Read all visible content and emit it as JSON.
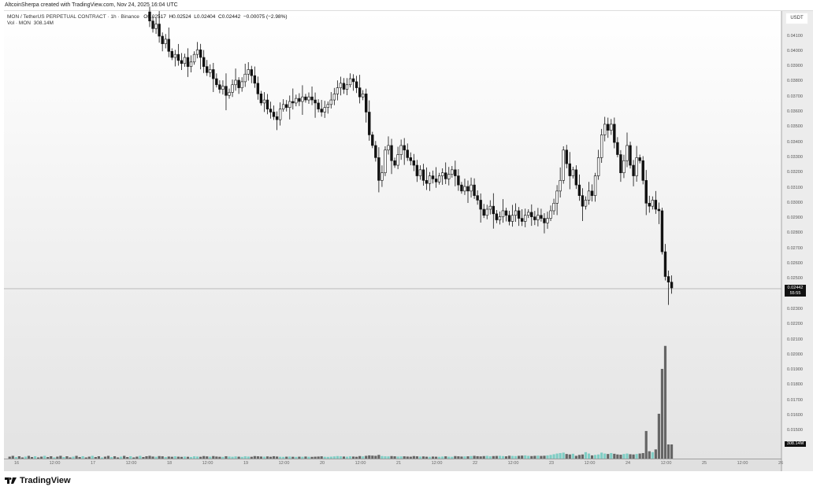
{
  "credit": "AltcoinSherpa created with TradingView.com, Nov 24, 2025 16:04 UTC",
  "legend": {
    "symbol": "MON / TetherUS PERPETUAL CONTRACT · 1h · Binance",
    "open": "O0.02517",
    "high": "H0.02524",
    "low": "L0.02404",
    "close": "C0.02442",
    "change": "−0.00075 (−2.98%)",
    "vol_label": "Vol · MON",
    "vol_value": "308.14M"
  },
  "axis": {
    "currency": "USDT",
    "last_price": "0.02442",
    "countdown": "55:55",
    "last_volume": "308.14M"
  },
  "brand": "TradingView",
  "colors": {
    "up_volume": "#7fcdc4",
    "down_volume": "#666666",
    "candle_down": "#111111",
    "candle_up": "#ffffff"
  },
  "chart_data": {
    "type": "candlestick",
    "interval": "1h",
    "start": "Nov 17 18:00",
    "price_ticks": [
      "0.04100",
      "0.04000",
      "0.03900",
      "0.03800",
      "0.03700",
      "0.03600",
      "0.03500",
      "0.03400",
      "0.03300",
      "0.03200",
      "0.03100",
      "0.03000",
      "0.02900",
      "0.02800",
      "0.02700",
      "0.02600",
      "0.02500",
      "0.02300",
      "0.02200",
      "0.02100",
      "0.02000",
      "0.01900",
      "0.01800",
      "0.01700",
      "0.01600",
      "0.01500"
    ],
    "time_ticks": [
      "16",
      "12:00",
      "17",
      "12:00",
      "18",
      "12:00",
      "19",
      "12:00",
      "20",
      "12:00",
      "21",
      "12:00",
      "22",
      "12:00",
      "23",
      "12:00",
      "24",
      "12:00",
      "25",
      "12:00",
      "26"
    ],
    "first_open": 0.0426,
    "close": [
      0.042,
      0.0415,
      0.0418,
      0.041,
      0.0405,
      0.0408,
      0.04,
      0.0396,
      0.0398,
      0.0394,
      0.0392,
      0.0396,
      0.039,
      0.0393,
      0.0398,
      0.0401,
      0.0396,
      0.039,
      0.0386,
      0.0388,
      0.0382,
      0.0378,
      0.0375,
      0.0377,
      0.0371,
      0.0373,
      0.0378,
      0.0381,
      0.0376,
      0.038,
      0.0385,
      0.0388,
      0.0384,
      0.0379,
      0.0372,
      0.0366,
      0.0368,
      0.0362,
      0.036,
      0.0357,
      0.0355,
      0.0362,
      0.0365,
      0.0363,
      0.0367,
      0.0366,
      0.0369,
      0.0367,
      0.037,
      0.0368,
      0.037,
      0.0368,
      0.0366,
      0.0362,
      0.036,
      0.0363,
      0.0365,
      0.0368,
      0.0372,
      0.0376,
      0.0379,
      0.0375,
      0.0378,
      0.0382,
      0.038,
      0.0376,
      0.037,
      0.0372,
      0.036,
      0.0345,
      0.0338,
      0.033,
      0.0315,
      0.032,
      0.0335,
      0.0338,
      0.0328,
      0.0325,
      0.0332,
      0.0338,
      0.0335,
      0.033,
      0.0328,
      0.0325,
      0.0318,
      0.0322,
      0.0315,
      0.0313,
      0.0318,
      0.0316,
      0.0314,
      0.0318,
      0.032,
      0.0316,
      0.0319,
      0.0322,
      0.0318,
      0.0312,
      0.0308,
      0.0311,
      0.0308,
      0.0312,
      0.0305,
      0.0302,
      0.0296,
      0.0292,
      0.0296,
      0.0298,
      0.0293,
      0.0289,
      0.0291,
      0.0295,
      0.0292,
      0.0288,
      0.0292,
      0.0295,
      0.029,
      0.0288,
      0.0292,
      0.0294,
      0.0291,
      0.0289,
      0.0292,
      0.029,
      0.0287,
      0.029,
      0.0295,
      0.03,
      0.0308,
      0.0315,
      0.0335,
      0.0326,
      0.0318,
      0.0322,
      0.0312,
      0.0305,
      0.0298,
      0.0302,
      0.0308,
      0.0305,
      0.0318,
      0.033,
      0.0345,
      0.0352,
      0.0348,
      0.0352,
      0.034,
      0.0332,
      0.032,
      0.0328,
      0.0338,
      0.0325,
      0.0318,
      0.033,
      0.0328,
      0.0315,
      0.03,
      0.0298,
      0.0302,
      0.0296,
      0.0295,
      0.0268,
      0.02517,
      0.0248,
      0.02442
    ],
    "volume_m": [
      60,
      45,
      40,
      55,
      50,
      35,
      45,
      40,
      50,
      42,
      38,
      45,
      40,
      35,
      50,
      45,
      40,
      55,
      48,
      42,
      55,
      45,
      40,
      38,
      52,
      45,
      40,
      48,
      42,
      38,
      50,
      44,
      40,
      55,
      50,
      45,
      42,
      48,
      40,
      52,
      45,
      40,
      38,
      42,
      45,
      40,
      38,
      42,
      40,
      45,
      40,
      38,
      42,
      45,
      50,
      40,
      38,
      42,
      48,
      55,
      50,
      45,
      42,
      50,
      45,
      40,
      55,
      48,
      60,
      70,
      65,
      60,
      80,
      55,
      50,
      48,
      55,
      50,
      45,
      48,
      50,
      45,
      42,
      55,
      50,
      45,
      48,
      42,
      40,
      45,
      42,
      40,
      45,
      50,
      42,
      40,
      55,
      50,
      45,
      48,
      50,
      55,
      60,
      52,
      48,
      55,
      60,
      50,
      55,
      58,
      60,
      55,
      50,
      62,
      58,
      55,
      60,
      65,
      70,
      60,
      55,
      60,
      65,
      58,
      62,
      70,
      80,
      95,
      110,
      120,
      130,
      100,
      90,
      105,
      60,
      80,
      90,
      140,
      110,
      70,
      80,
      90,
      130,
      110,
      100,
      120,
      105,
      90,
      85,
      100,
      110,
      95,
      90,
      100,
      110,
      120,
      600,
      160,
      140,
      200,
      975,
      1950,
      2450,
      308,
      308
    ],
    "ylim": [
      0.015,
      0.0426
    ],
    "grid": false
  }
}
